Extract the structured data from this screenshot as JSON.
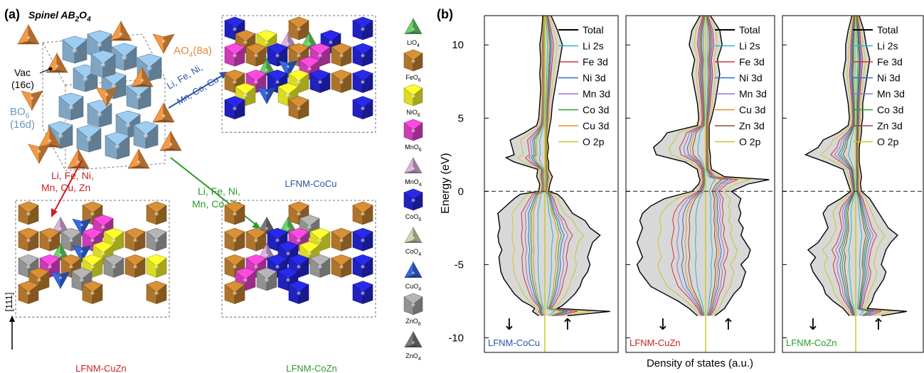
{
  "panel_a": {
    "label": "(a)",
    "title": "Spinel AB",
    "title_sub": "2",
    "title_mid": "O",
    "title_sub2": "4",
    "site_A": "AO",
    "site_A_sub": "4",
    "site_A_tail": "(8a)",
    "vac": "Vac",
    "vac_site": "(16c)",
    "site_B": "BO",
    "site_B_sub": "6",
    "site_B_tail": "(16d)",
    "arrow_cocu": [
      "Li, Fe, Ni,",
      "Mn, Co, Cu"
    ],
    "arrow_cuzn": [
      "Li, Fe, Ni,",
      "Mn, Cu, Zn"
    ],
    "arrow_cozn": [
      "Li, Fe, Ni,",
      "Mn, Co, Zn"
    ],
    "struct_cocu": "LFNM-CoCu",
    "struct_cuzn": "LFNM-CuZn",
    "struct_cozn": "LFNM-CoZn",
    "direction": "[111]",
    "colors": {
      "A": "#e08a3c",
      "B": "#86aecd",
      "cocu": "#2a55a5",
      "cuzn": "#cc1f1f",
      "cozn": "#2a9a2a"
    },
    "legend": [
      {
        "base": "LiO",
        "sub": "4",
        "color": "#5fbf5f",
        "shape": "tet"
      },
      {
        "base": "FeO",
        "sub": "6",
        "color": "#b87a2e",
        "shape": "oct"
      },
      {
        "base": "NiO",
        "sub": "6",
        "color": "#e6e629",
        "shape": "oct"
      },
      {
        "base": "MnO",
        "sub": "6",
        "color": "#d63fbf",
        "shape": "oct"
      },
      {
        "base": "MnO",
        "sub": "4",
        "color": "#c9a3c9",
        "shape": "tet"
      },
      {
        "base": "CoO",
        "sub": "6",
        "color": "#2323c8",
        "shape": "oct"
      },
      {
        "base": "CoO",
        "sub": "4",
        "color": "#c2c2a2",
        "shape": "tet"
      },
      {
        "base": "CuO",
        "sub": "4",
        "color": "#2f5fd0",
        "shape": "tet"
      },
      {
        "base": "ZnO",
        "sub": "6",
        "color": "#9a9a9a",
        "shape": "oct"
      },
      {
        "base": "ZnO",
        "sub": "4",
        "color": "#6e6e6e",
        "shape": "tet"
      }
    ]
  },
  "panel_b": {
    "label": "(b)",
    "ylabel": "Energy (eV)",
    "xlabel": "Density of states (a.u.)",
    "spin_down": "↓",
    "spin_up": "↑"
  },
  "chart_data": [
    {
      "type": "line",
      "title": "LFNM-CoCu",
      "ylabel": "Energy (eV)",
      "ylim": [
        -11,
        12
      ],
      "yticks": [
        -10,
        -5,
        0,
        5,
        10
      ],
      "fermi_level": 0,
      "title_color": "#2a55a5",
      "legend": [
        "Total",
        "Li  2s",
        "Fe 3d",
        "Ni  3d",
        "Mn 3d",
        "Co 3d",
        "Cu 3d",
        "O  2p"
      ],
      "series": [
        {
          "name": "Total",
          "color": "#000000",
          "energy": [
            -8.5,
            -8.2,
            -8.0,
            -7.8,
            -7.5,
            -7,
            -6.5,
            -6,
            -5.5,
            -5,
            -4.5,
            -4,
            -3.5,
            -3,
            -2.5,
            -2,
            -1.5,
            -1,
            -0.5,
            -0.2,
            0,
            0.5,
            1,
            1.5,
            2,
            2.3,
            2.5,
            3,
            3.5,
            4,
            4.5,
            5,
            6,
            7,
            8,
            9,
            10,
            11,
            12
          ],
          "down": [
            0.6,
            1.2,
            1.0,
            1.4,
            2.2,
            3.0,
            3.5,
            4.0,
            4.3,
            4.4,
            4.5,
            4.2,
            4.5,
            4.6,
            4.4,
            4.5,
            4.6,
            3.8,
            3.0,
            2.4,
            0.6,
            0.5,
            0.8,
            0.7,
            3.0,
            3.8,
            3.0,
            3.2,
            3.4,
            2.0,
            0.8,
            0.6,
            0.5,
            0.4,
            0.5,
            0.4,
            0.5,
            0.3,
            0.2
          ],
          "up": [
            1.8,
            5.2,
            1.0,
            1.4,
            1.8,
            2.4,
            2.8,
            3.0,
            3.4,
            3.6,
            3.4,
            3.6,
            3.8,
            4.4,
            3.6,
            3.2,
            2.2,
            1.8,
            1.4,
            1.0,
            0.3,
            0.4,
            0.6,
            0.3,
            0.3,
            0.2,
            0.2,
            0.3,
            0.2,
            0.3,
            0.4,
            0.5,
            0.6,
            0.8,
            1.0,
            1.2,
            1.4,
            1.0,
            0.5
          ]
        }
      ]
    },
    {
      "type": "line",
      "title": "LFNM-CuZn",
      "ylabel": "Energy (eV)",
      "ylim": [
        -11,
        12
      ],
      "yticks": [
        -10,
        -5,
        0,
        5,
        10
      ],
      "fermi_level": 0,
      "title_color": "#cc1f1f",
      "legend": [
        "Total",
        "Li  2s",
        "Fe 3d",
        "Ni  3d",
        "Mn 3d",
        "Cu 3d",
        "Zn 3d",
        "O  2p"
      ],
      "series": [
        {
          "name": "Total",
          "color": "#000000",
          "energy": [
            -8.5,
            -8,
            -7.5,
            -7,
            -6.5,
            -6,
            -5.5,
            -5,
            -4.5,
            -4,
            -3.5,
            -3,
            -2.5,
            -2,
            -1.5,
            -1,
            -0.5,
            0,
            0.5,
            0.8,
            1,
            1.5,
            2,
            2.5,
            3,
            3.5,
            4,
            4.5,
            5,
            6,
            7,
            8,
            9,
            10,
            11,
            12
          ],
          "down": [
            0.6,
            1.2,
            2.0,
            3.0,
            4.0,
            4.4,
            4.8,
            5.0,
            4.6,
            4.8,
            5.0,
            4.8,
            4.6,
            4.8,
            4.6,
            4.0,
            3.0,
            1.0,
            0.5,
            0.4,
            0.5,
            0.6,
            1.5,
            3.6,
            3.8,
            3.2,
            2.8,
            0.6,
            0.5,
            0.6,
            0.8,
            1.0,
            0.8,
            1.2,
            1.0,
            0.4
          ],
          "up": [
            0.8,
            1.6,
            2.0,
            2.4,
            3.0,
            3.2,
            3.4,
            3.0,
            3.6,
            3.8,
            3.4,
            3.0,
            3.2,
            2.8,
            3.0,
            2.8,
            3.0,
            2.2,
            3.6,
            5.4,
            1.6,
            0.5,
            0.4,
            0.4,
            0.3,
            0.3,
            0.3,
            0.3,
            0.5,
            0.8,
            1.0,
            1.2,
            1.0,
            1.4,
            1.2,
            0.4
          ]
        }
      ]
    },
    {
      "type": "line",
      "title": "LFNM-CoZn",
      "ylabel": "Energy (eV)",
      "ylim": [
        -11,
        12
      ],
      "yticks": [
        -10,
        -5,
        0,
        5,
        10
      ],
      "fermi_level": 0,
      "title_color": "#2a9a2a",
      "legend": [
        "Total",
        "Li  2s",
        "Fe 3d",
        "Ni  3d",
        "Mn 3d",
        "Co 3d",
        "Zn 3d",
        "O  2p"
      ],
      "series": [
        {
          "name": "Total",
          "color": "#000000",
          "energy": [
            -8.5,
            -8.2,
            -8,
            -7.5,
            -7,
            -6.5,
            -6,
            -5.5,
            -5,
            -4.5,
            -4,
            -3.5,
            -3,
            -2.5,
            -2,
            -1.5,
            -1,
            -0.5,
            0,
            0.5,
            1,
            1.5,
            2,
            2.5,
            3,
            3.5,
            4,
            4.5,
            5,
            6,
            7,
            8,
            9,
            10,
            11,
            12
          ],
          "down": [
            0.5,
            0.8,
            1.0,
            1.8,
            2.4,
            2.6,
            3.0,
            3.4,
            3.6,
            3.2,
            3.8,
            3.0,
            2.6,
            2.2,
            2.4,
            2.6,
            2.2,
            1.2,
            0.4,
            0.6,
            0.8,
            1.0,
            2.4,
            4.0,
            3.0,
            2.6,
            1.4,
            0.6,
            0.5,
            0.6,
            0.8,
            1.0,
            0.8,
            0.8,
            0.6,
            0.3
          ],
          "up": [
            2.2,
            4.4,
            1.0,
            1.4,
            1.6,
            2.0,
            2.4,
            2.6,
            2.2,
            2.4,
            2.6,
            3.0,
            3.6,
            2.8,
            2.4,
            2.0,
            1.6,
            1.2,
            0.5,
            0.4,
            0.5,
            0.4,
            0.3,
            0.3,
            0.3,
            0.4,
            0.5,
            0.5,
            0.6,
            0.6,
            0.8,
            1.0,
            1.2,
            0.9,
            0.7,
            0.3
          ]
        }
      ]
    }
  ]
}
